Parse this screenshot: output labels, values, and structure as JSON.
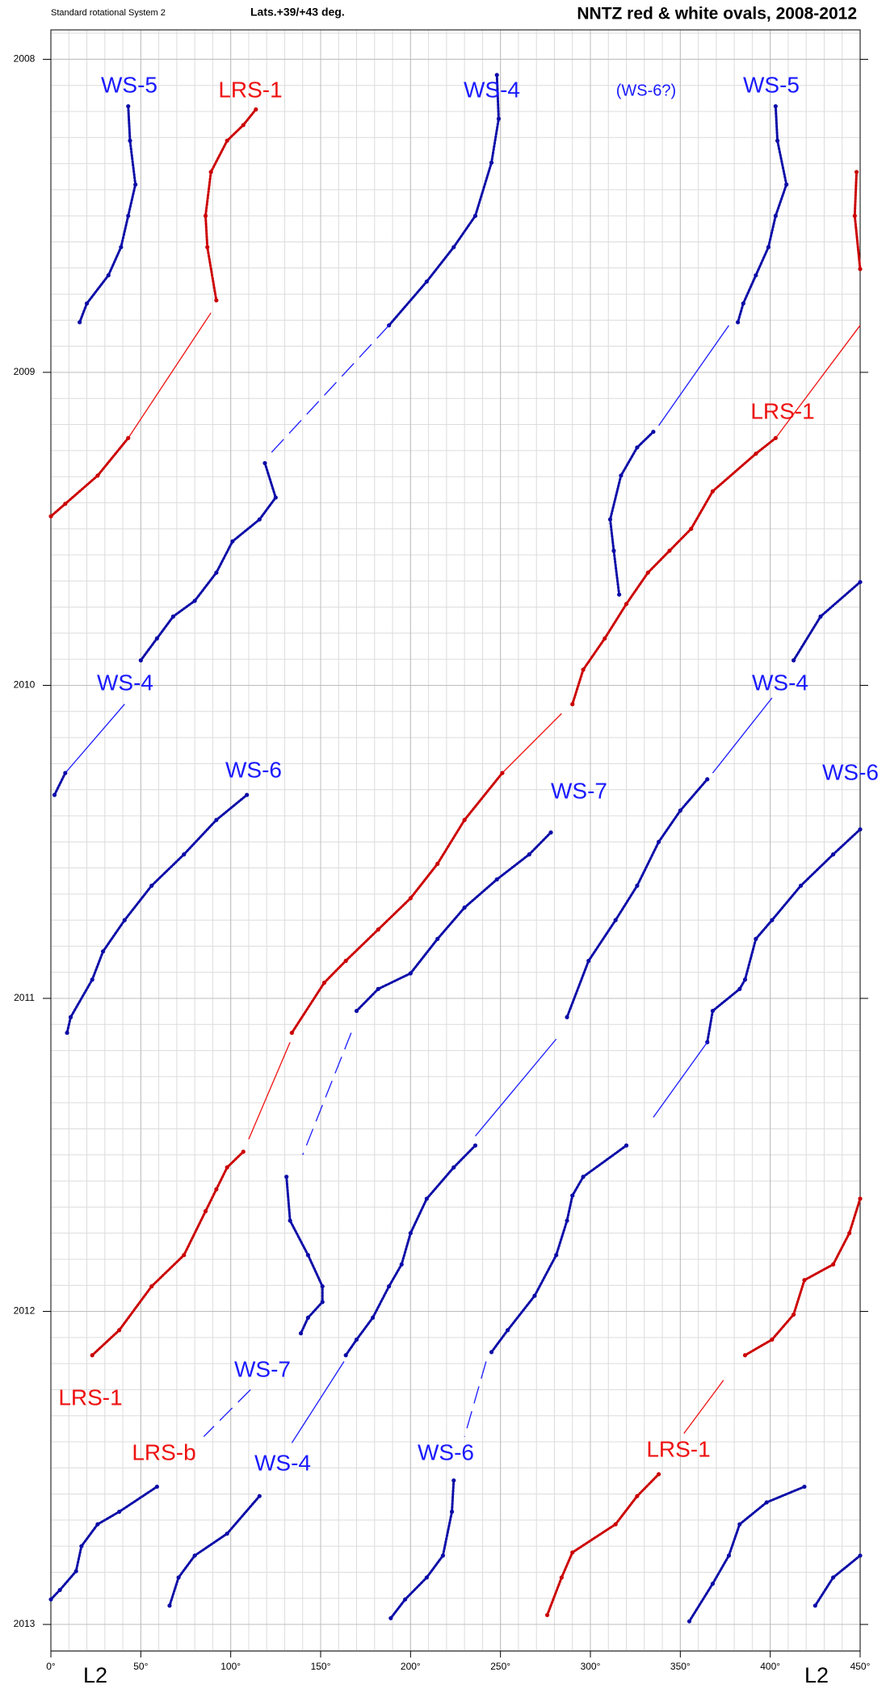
{
  "chart_data": {
    "type": "scatter",
    "header": "Standard rotational System 2",
    "subtitle": "Lats.+39/+43 deg.",
    "title": "NNTZ red & white ovals, 2008-2012",
    "xlabel": "L2",
    "xlim": [
      0,
      450
    ],
    "ylim": [
      2007.906,
      2013.085
    ],
    "y_reversed": true,
    "xticks": [
      {
        "value": 0,
        "label": "0°"
      },
      {
        "value": 50,
        "label": "50°"
      },
      {
        "value": 100,
        "label": "100°"
      },
      {
        "value": 150,
        "label": "150°"
      },
      {
        "value": 200,
        "label": "200°"
      },
      {
        "value": 250,
        "label": "250°"
      },
      {
        "value": 300,
        "label": "300°"
      },
      {
        "value": 350,
        "label": "350°"
      },
      {
        "value": 400,
        "label": "400°"
      },
      {
        "value": 450,
        "label": "450°"
      }
    ],
    "yticks": [
      2008,
      2009,
      2010,
      2011,
      2012,
      2013
    ],
    "grid": true,
    "x_minor_step": 10,
    "y_minor_per_major": 12,
    "annotations": [
      {
        "text": "WS-5",
        "color": "#1a1aff"
      },
      {
        "text": "LRS-1",
        "color": "#ee1111"
      },
      {
        "text": "WS-4",
        "color": "#1a1aff"
      },
      {
        "text": "(WS-6?)",
        "color": "#1a1aff"
      },
      {
        "text": "WS-5",
        "color": "#1a1aff"
      },
      {
        "text": "LRS-1",
        "color": "#ee1111"
      },
      {
        "text": "WS-4",
        "color": "#1a1aff"
      },
      {
        "text": "WS-4",
        "color": "#1a1aff"
      },
      {
        "text": "WS-6",
        "color": "#1a1aff"
      },
      {
        "text": "WS-7",
        "color": "#1a1aff"
      },
      {
        "text": "WS-6",
        "color": "#1a1aff"
      },
      {
        "text": "LRS-1",
        "color": "#ee1111"
      },
      {
        "text": "WS-7",
        "color": "#1a1aff"
      },
      {
        "text": "LRS-b",
        "color": "#ee1111"
      },
      {
        "text": "WS-4",
        "color": "#1a1aff"
      },
      {
        "text": "WS-6",
        "color": "#1a1aff"
      },
      {
        "text": "LRS-1",
        "color": "#ee1111"
      }
    ],
    "series": [
      {
        "color": "#0c0ca8",
        "style": "track",
        "x": [
          43,
          44,
          47,
          43,
          39,
          32,
          20,
          16
        ],
        "y": [
          2008.15,
          2008.26,
          2008.4,
          2008.5,
          2008.6,
          2008.69,
          2008.78,
          2008.84
        ]
      },
      {
        "color": "#cc0000",
        "style": "track",
        "x": [
          114,
          107,
          98,
          89,
          86,
          87,
          92
        ],
        "y": [
          2008.16,
          2008.21,
          2008.26,
          2008.36,
          2008.5,
          2008.6,
          2008.77
        ]
      },
      {
        "color": "#ee1111",
        "style": "link",
        "x": [
          89,
          43
        ],
        "y": [
          2008.81,
          2009.21
        ]
      },
      {
        "color": "#cc0000",
        "style": "track",
        "x": [
          43,
          26,
          8,
          0
        ],
        "y": [
          2009.21,
          2009.33,
          2009.42,
          2009.46
        ]
      },
      {
        "color": "#0c0ca8",
        "style": "track",
        "x": [
          248,
          249,
          245,
          236,
          224,
          209,
          188
        ],
        "y": [
          2008.05,
          2008.19,
          2008.33,
          2008.5,
          2008.6,
          2008.71,
          2008.85
        ]
      },
      {
        "color": "#1a1aff",
        "style": "dashed",
        "x": [
          188,
          122
        ],
        "y": [
          2008.85,
          2009.26
        ]
      },
      {
        "color": "#0c0ca8",
        "style": "track",
        "x": [
          119,
          125,
          116,
          101,
          92,
          80,
          68,
          59,
          50
        ],
        "y": [
          2009.29,
          2009.4,
          2009.47,
          2009.54,
          2009.64,
          2009.73,
          2009.78,
          2009.85,
          2009.92
        ]
      },
      {
        "color": "#1a1aff",
        "style": "link",
        "x": [
          41,
          8
        ],
        "y": [
          2010.06,
          2010.28
        ]
      },
      {
        "color": "#0c0ca8",
        "style": "track",
        "x": [
          8,
          2
        ],
        "y": [
          2010.28,
          2010.35
        ]
      },
      {
        "color": "#0c0ca8",
        "style": "track",
        "x": [
          403,
          404,
          409,
          403,
          399,
          392,
          385,
          382
        ],
        "y": [
          2008.15,
          2008.26,
          2008.4,
          2008.5,
          2008.6,
          2008.69,
          2008.78,
          2008.84
        ]
      },
      {
        "color": "#1a1aff",
        "style": "link",
        "x": [
          377,
          338
        ],
        "y": [
          2008.85,
          2009.17
        ]
      },
      {
        "color": "#0c0ca8",
        "style": "track",
        "x": [
          335,
          326,
          317,
          311,
          313,
          316
        ],
        "y": [
          2009.19,
          2009.24,
          2009.33,
          2009.47,
          2009.57,
          2009.71
        ]
      },
      {
        "color": "#cc0000",
        "style": "track",
        "x": [
          448,
          447,
          450
        ],
        "y": [
          2008.36,
          2008.5,
          2008.67
        ]
      },
      {
        "color": "#ee1111",
        "style": "link",
        "x": [
          450,
          403
        ],
        "y": [
          2008.85,
          2009.21
        ]
      },
      {
        "color": "#cc0000",
        "style": "track",
        "x": [
          403,
          392,
          368,
          356,
          344,
          332,
          320,
          308,
          296,
          290
        ],
        "y": [
          2009.21,
          2009.26,
          2009.38,
          2009.5,
          2009.57,
          2009.64,
          2009.74,
          2009.85,
          2009.95,
          2010.06
        ]
      },
      {
        "color": "#ee1111",
        "style": "link",
        "x": [
          284,
          251
        ],
        "y": [
          2010.09,
          2010.28
        ]
      },
      {
        "color": "#cc0000",
        "style": "track",
        "x": [
          251,
          230,
          215,
          200,
          182,
          164,
          152,
          134
        ],
        "y": [
          2010.28,
          2010.43,
          2010.57,
          2010.68,
          2010.78,
          2010.88,
          2010.95,
          2011.11
        ]
      },
      {
        "color": "#ee1111",
        "style": "link",
        "x": [
          133,
          110
        ],
        "y": [
          2011.14,
          2011.45
        ]
      },
      {
        "color": "#cc0000",
        "style": "track",
        "x": [
          107,
          98,
          92,
          86,
          74,
          56,
          38,
          23
        ],
        "y": [
          2011.49,
          2011.54,
          2011.61,
          2011.68,
          2011.82,
          2011.92,
          2012.06,
          2012.14
        ]
      },
      {
        "color": "#0c0ca8",
        "style": "track",
        "x": [
          450,
          428,
          413
        ],
        "y": [
          2009.67,
          2009.78,
          2009.92
        ]
      },
      {
        "color": "#1a1aff",
        "style": "link",
        "x": [
          401,
          368
        ],
        "y": [
          2010.04,
          2010.28
        ]
      },
      {
        "color": "#0c0ca8",
        "style": "track",
        "x": [
          365,
          350,
          338,
          326,
          314,
          299,
          287
        ],
        "y": [
          2010.3,
          2010.4,
          2010.5,
          2010.64,
          2010.75,
          2010.88,
          2011.06
        ]
      },
      {
        "color": "#1a1aff",
        "style": "link",
        "x": [
          281,
          236
        ],
        "y": [
          2011.13,
          2011.44
        ]
      },
      {
        "color": "#0c0ca8",
        "style": "track",
        "x": [
          236,
          224,
          209,
          200,
          195,
          188,
          179,
          170,
          164
        ],
        "y": [
          2011.47,
          2011.54,
          2011.64,
          2011.75,
          2011.85,
          2011.92,
          2012.02,
          2012.09,
          2012.14
        ]
      },
      {
        "color": "#1a1aff",
        "style": "link",
        "x": [
          163,
          134
        ],
        "y": [
          2012.16,
          2012.42
        ]
      },
      {
        "color": "#0c0ca8",
        "style": "track",
        "x": [
          109,
          92,
          74,
          56,
          41,
          29,
          23,
          11,
          9
        ],
        "y": [
          2010.35,
          2010.43,
          2010.54,
          2010.64,
          2010.75,
          2010.85,
          2010.94,
          2011.06,
          2011.11
        ]
      },
      {
        "color": "#0c0ca8",
        "style": "track",
        "x": [
          450,
          435,
          417,
          401,
          392,
          386,
          383,
          368,
          365
        ],
        "y": [
          2010.46,
          2010.54,
          2010.64,
          2010.75,
          2010.81,
          2010.94,
          2010.97,
          2011.04,
          2011.14
        ]
      },
      {
        "color": "#1a1aff",
        "style": "link",
        "x": [
          365,
          335
        ],
        "y": [
          2011.14,
          2011.38
        ]
      },
      {
        "color": "#0c0ca8",
        "style": "track",
        "x": [
          320,
          296,
          290,
          287,
          281,
          269,
          254,
          245
        ],
        "y": [
          2011.47,
          2011.57,
          2011.63,
          2011.71,
          2011.82,
          2011.95,
          2012.06,
          2012.13
        ]
      },
      {
        "color": "#1a1aff",
        "style": "dashed",
        "x": [
          242,
          230
        ],
        "y": [
          2012.16,
          2012.4
        ]
      },
      {
        "color": "#0c0ca8",
        "style": "track",
        "x": [
          224,
          223,
          218,
          209,
          197,
          189
        ],
        "y": [
          2012.54,
          2012.64,
          2012.78,
          2012.85,
          2012.92,
          2012.98
        ]
      },
      {
        "color": "#0c0ca8",
        "style": "track",
        "x": [
          278,
          266,
          248,
          230,
          215,
          200,
          182,
          170
        ],
        "y": [
          2010.47,
          2010.54,
          2010.62,
          2010.71,
          2010.81,
          2010.92,
          2010.97,
          2011.04
        ]
      },
      {
        "color": "#1a1aff",
        "style": "dashed",
        "x": [
          167,
          140
        ],
        "y": [
          2011.11,
          2011.5
        ]
      },
      {
        "color": "#0c0ca8",
        "style": "track",
        "x": [
          131,
          133,
          143,
          151,
          151,
          143,
          139
        ],
        "y": [
          2011.57,
          2011.71,
          2011.82,
          2011.92,
          2011.97,
          2012.02,
          2012.07
        ]
      },
      {
        "color": "#1a1aff",
        "style": "dashed",
        "x": [
          111,
          85
        ],
        "y": [
          2012.25,
          2012.4
        ]
      },
      {
        "color": "#cc0000",
        "style": "track",
        "x": [
          450,
          444,
          435,
          419,
          413,
          401,
          386
        ],
        "y": [
          2011.64,
          2011.75,
          2011.85,
          2011.9,
          2012.01,
          2012.09,
          2012.14
        ]
      },
      {
        "color": "#ee1111",
        "style": "link",
        "x": [
          374,
          352
        ],
        "y": [
          2012.22,
          2012.39
        ]
      },
      {
        "color": "#cc0000",
        "style": "track",
        "x": [
          338,
          326,
          314,
          290,
          284,
          276
        ],
        "y": [
          2012.52,
          2012.59,
          2012.68,
          2012.77,
          2012.85,
          2012.97
        ]
      },
      {
        "color": "#0c0ca8",
        "style": "track",
        "x": [
          59,
          38,
          26,
          17,
          14,
          5,
          0
        ],
        "y": [
          2012.56,
          2012.64,
          2012.68,
          2012.75,
          2012.83,
          2012.89,
          2012.92
        ]
      },
      {
        "color": "#0c0ca8",
        "style": "track",
        "x": [
          116,
          98,
          80,
          71,
          66
        ],
        "y": [
          2012.59,
          2012.71,
          2012.78,
          2012.85,
          2012.94
        ]
      },
      {
        "color": "#0c0ca8",
        "style": "track",
        "x": [
          419,
          398,
          383,
          377,
          368,
          355
        ],
        "y": [
          2012.56,
          2012.61,
          2012.68,
          2012.78,
          2012.87,
          2012.99
        ]
      },
      {
        "color": "#0c0ca8",
        "style": "track",
        "x": [
          450,
          435,
          425
        ],
        "y": [
          2012.78,
          2012.85,
          2012.94
        ]
      }
    ]
  }
}
